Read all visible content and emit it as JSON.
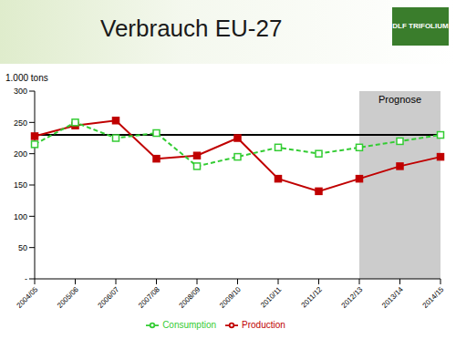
{
  "chart_data": {
    "type": "line",
    "title": "Verbrauch EU-27",
    "logo": "DLF TRIFOLIUM",
    "y_label": "1.000 tons",
    "categories": [
      "2004/05",
      "2005/06",
      "2006/07",
      "2007/08",
      "2008/09",
      "2009/10",
      "2010/11",
      "2011/12",
      "2012/13",
      "2013/14",
      "2014/15"
    ],
    "series": [
      {
        "name": "Production",
        "color": "#c00000",
        "marker": "square",
        "line_style": "solid",
        "values": [
          228,
          245,
          253,
          192,
          197,
          225,
          160,
          140,
          160,
          180,
          195
        ]
      },
      {
        "name": "Consumption",
        "color": "#33cc33",
        "marker": "square",
        "line_style": "dashed",
        "values": [
          215,
          250,
          225,
          233,
          180,
          195,
          210,
          200,
          210,
          220,
          230
        ]
      }
    ],
    "reference_line": 230,
    "annotations": [
      {
        "text": "Prognose",
        "from": "2012/13",
        "to": "2014/15"
      }
    ],
    "ylim": [
      0,
      300
    ],
    "yticks": [
      {
        "value": 0,
        "label": "-"
      },
      50,
      100,
      150,
      200,
      250,
      300
    ],
    "grid": false,
    "legend": "bottom"
  }
}
